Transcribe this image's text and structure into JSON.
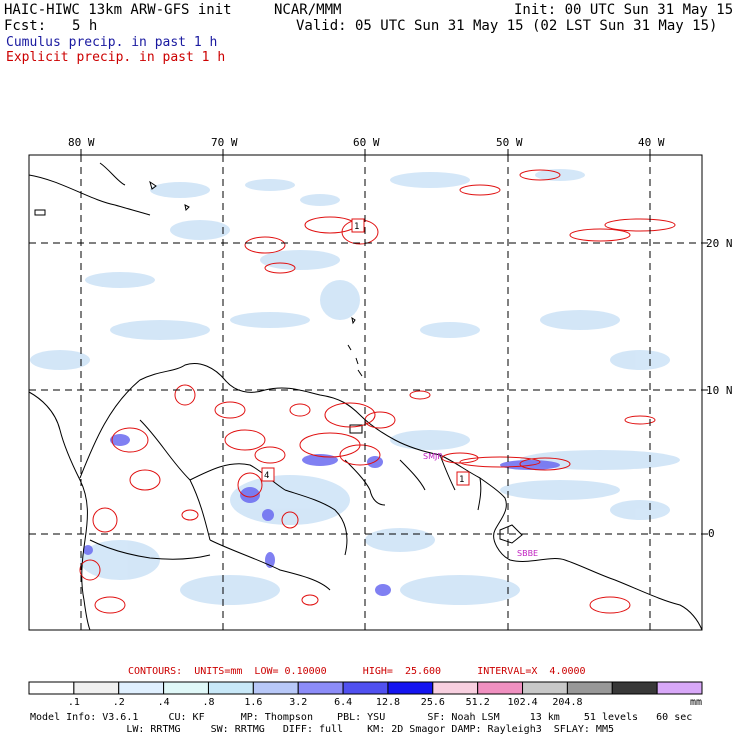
{
  "header": {
    "model": "HAIC-HIWC 13km ARW-GFS init",
    "org": "NCAR/MMM",
    "init": "Init: 00 UTC Sun 31 May 15",
    "fcst_label": "Fcst:",
    "fcst_value": "5 h",
    "valid": "Valid: 05 UTC Sun 31 May 15 (02 LST Sun 31 May 15)",
    "field1": "Cumulus precip. in past 1 h",
    "field2": "Explicit precip. in past 1 h"
  },
  "map": {
    "lon_labels": [
      "80 W",
      "70 W",
      "60 W",
      "50 W",
      "40 W"
    ],
    "lat_labels": [
      "20 N",
      "10 N",
      "0"
    ],
    "stations": [
      "SMJP",
      "SBBE"
    ],
    "max_marks": [
      "1",
      "4",
      "1"
    ]
  },
  "legend": {
    "contours": "CONTOURS:  UNITS=mm  LOW= 0.10000      HIGH=  25.600      INTERVAL=X  4.0000",
    "ticks": [
      ".1",
      ".2",
      ".4",
      ".8",
      "1.6",
      "3.2",
      "6.4",
      "12.8",
      "25.6",
      "51.2",
      "102.4",
      "204.8"
    ],
    "unit": "mm",
    "colors": [
      "#ffffff",
      "#f0f0f0",
      "#e0f0ff",
      "#e0f8f8",
      "#c8e8f8",
      "#b8c8f8",
      "#8c8cf8",
      "#5050f0",
      "#1414f0",
      "#f8d0e0",
      "#f090c0",
      "#c8c8c8",
      "#989898",
      "#383838",
      "#d8a8f8"
    ]
  },
  "footer": {
    "line1": "Model Info: V3.6.1     CU: KF      MP: Thompson    PBL: YSU       SF: Noah LSM     13 km    51 levels   60 sec",
    "line2": "                LW: RRTMG     SW: RRTMG   DIFF: full    KM: 2D Smagor DAMP: Rayleigh3  SFLAY: MM5"
  }
}
